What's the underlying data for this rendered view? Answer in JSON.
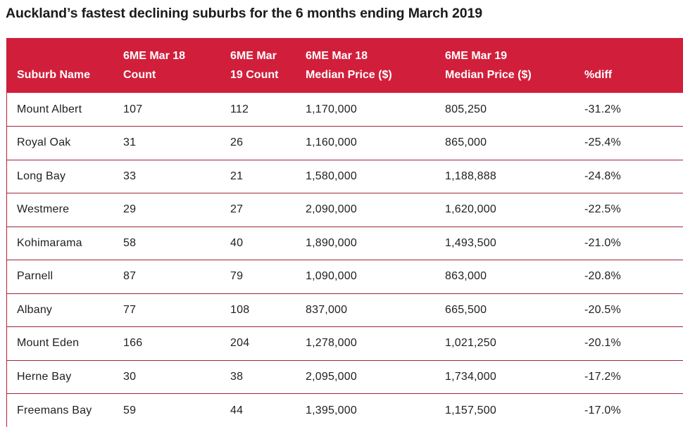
{
  "title": "Auckland’s fastest declining suburbs for the 6 months ending March 2019",
  "columns": [
    {
      "lines": [
        "",
        "Suburb Name"
      ]
    },
    {
      "lines": [
        "6ME Mar 18",
        "Count"
      ]
    },
    {
      "lines": [
        "6ME Mar",
        "19 Count"
      ]
    },
    {
      "lines": [
        "6ME Mar 18",
        "Median Price ($)"
      ]
    },
    {
      "lines": [
        "6ME Mar 19",
        "Median Price ($)"
      ]
    },
    {
      "lines": [
        "",
        "%diff"
      ]
    }
  ],
  "rows": [
    [
      "Mount Albert",
      "107",
      "112",
      "1,170,000",
      "805,250",
      "-31.2%"
    ],
    [
      "Royal Oak",
      "31",
      "26",
      "1,160,000",
      "865,000",
      "-25.4%"
    ],
    [
      "Long Bay",
      "33",
      "21",
      "1,580,000",
      "1,188,888",
      "-24.8%"
    ],
    [
      "Westmere",
      "29",
      "27",
      "2,090,000",
      "1,620,000",
      "-22.5%"
    ],
    [
      "Kohimarama",
      "58",
      "40",
      "1,890,000",
      "1,493,500",
      "-21.0%"
    ],
    [
      "Parnell",
      "87",
      "79",
      "1,090,000",
      "863,000",
      "-20.8%"
    ],
    [
      "Albany",
      "77",
      "108",
      "837,000",
      "665,500",
      "-20.5%"
    ],
    [
      "Mount Eden",
      "166",
      "204",
      "1,278,000",
      "1,021,250",
      "-20.1%"
    ],
    [
      "Herne Bay",
      "30",
      "38",
      "2,095,000",
      "1,734,000",
      "-17.2%"
    ],
    [
      "Freemans Bay",
      "59",
      "44",
      "1,395,000",
      "1,157,500",
      "-17.0%"
    ]
  ],
  "colors": {
    "header_background": "#d11f3b",
    "header_text": "#ffffff",
    "row_divider": "#a0263a"
  }
}
